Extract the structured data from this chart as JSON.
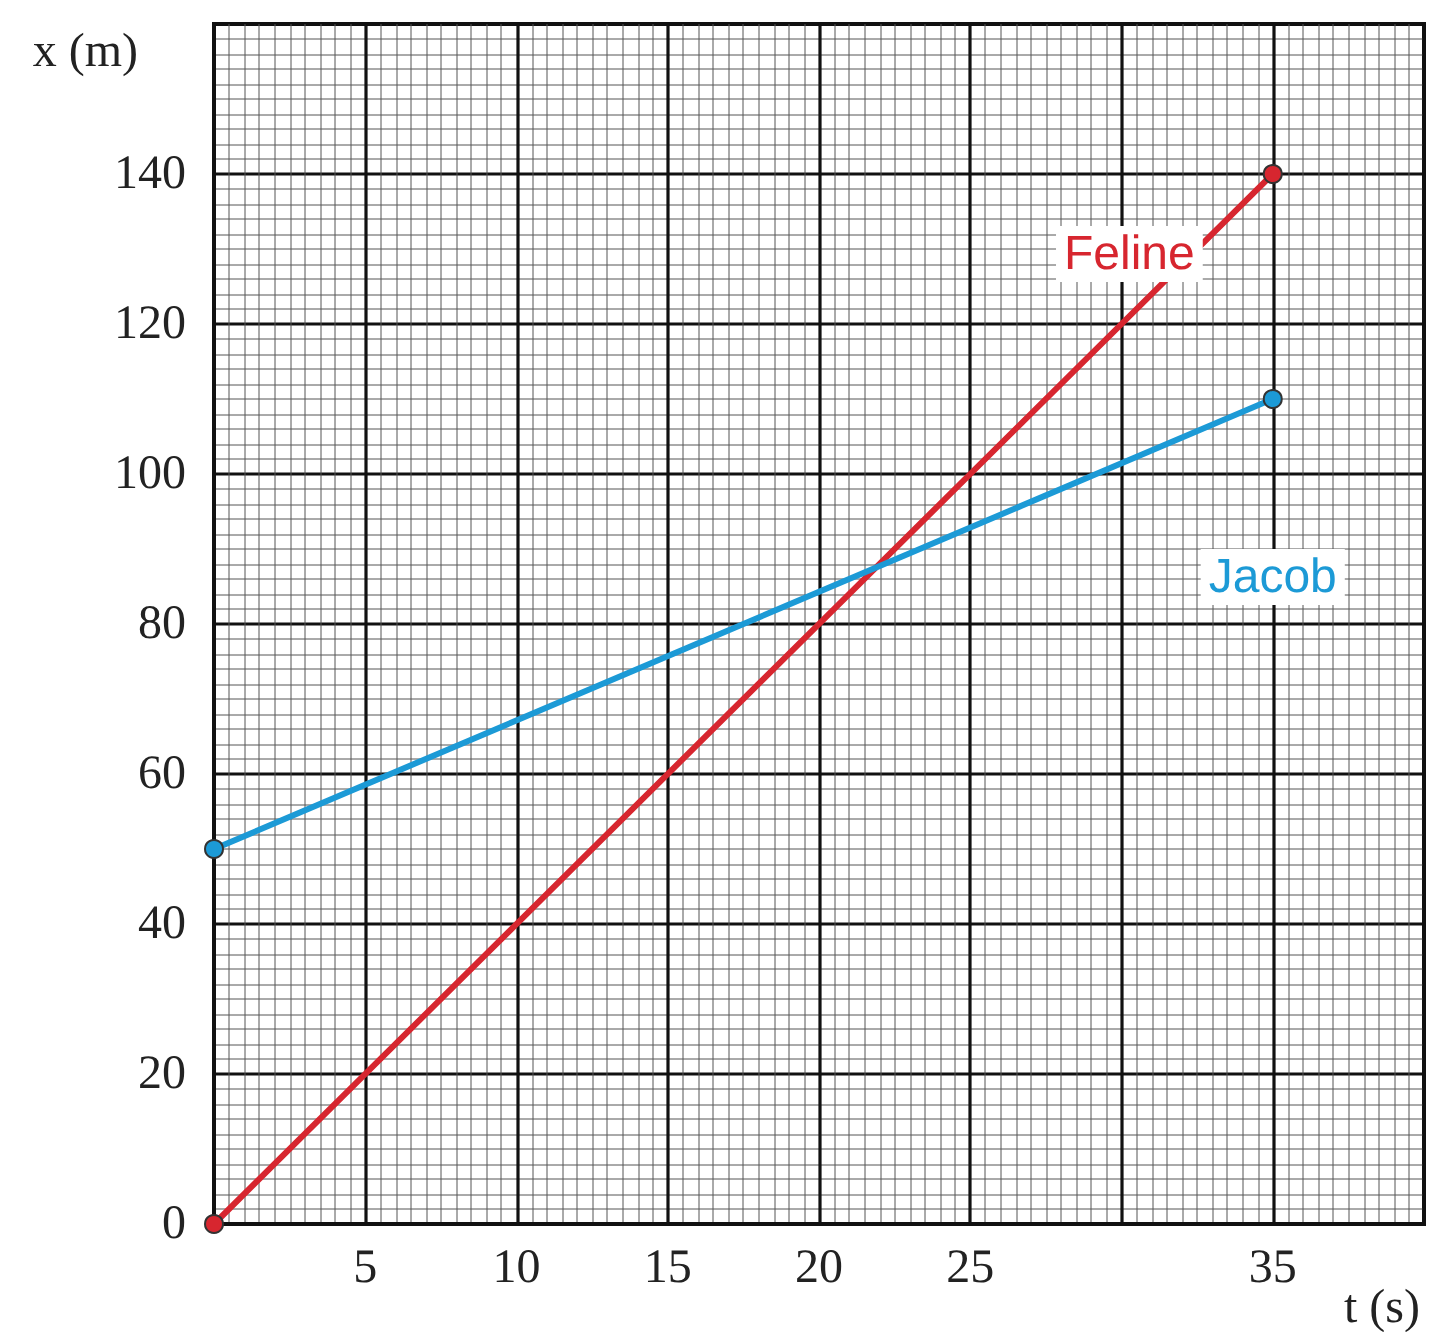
{
  "chart_data": {
    "type": "line",
    "xlabel": "t (s)",
    "ylabel": "x (m)",
    "x": [
      0,
      35
    ],
    "series": [
      {
        "name": "Feline",
        "color": "#d7262f",
        "values": [
          0,
          140
        ]
      },
      {
        "name": "Jacob",
        "color": "#1c9ad6",
        "values": [
          50,
          110
        ]
      }
    ],
    "xlim": [
      0,
      40
    ],
    "xticks": [
      5,
      10,
      15,
      20,
      25,
      35
    ],
    "ylim": [
      0,
      160
    ],
    "yticks": [
      0,
      20,
      40,
      60,
      80,
      100,
      120,
      140
    ],
    "grid": true,
    "marker": "circle",
    "line_style": "solid",
    "legend": false
  }
}
